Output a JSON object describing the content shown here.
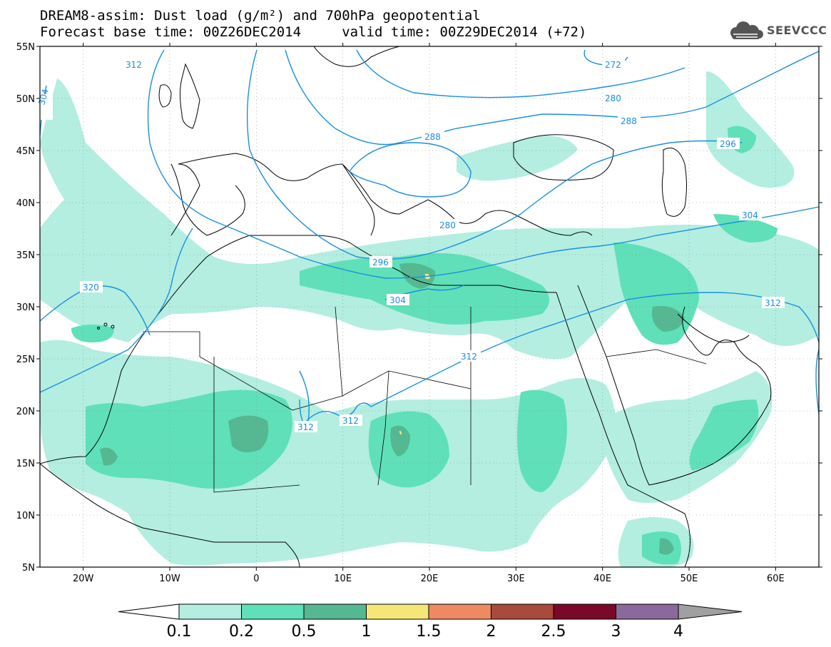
{
  "title": {
    "line1": "DREAM8-assim: Dust load (g/m²) and 700hPa geopotential",
    "line2": "Forecast base time: 00Z26DEC2014     valid time: 00Z29DEC2014 (+72)"
  },
  "logo": {
    "text": "SEEVCCC",
    "icon": "cloud-icon"
  },
  "colors": {
    "c1": "#b3eee0",
    "c2": "#5fe0b8",
    "c3": "#55b892",
    "c4": "#f5e678",
    "c5": "#ee8a62",
    "c6": "#a84a3c",
    "c7": "#7a0828",
    "c8": "#8a6a9a",
    "c9": "#a0a0a0",
    "contour": "#1a8fe0"
  },
  "map": {
    "lon_range": [
      -25,
      65
    ],
    "lat_range": [
      5,
      55
    ],
    "lat_labels": [
      "5N",
      "10N",
      "15N",
      "20N",
      "25N",
      "30N",
      "35N",
      "40N",
      "45N",
      "50N",
      "55N"
    ],
    "lon_labels": [
      "20W",
      "10W",
      "0",
      "10E",
      "20E",
      "30E",
      "40E",
      "50E",
      "60E"
    ],
    "contour_labels": [
      "272",
      "280",
      "288",
      "296",
      "304",
      "312",
      "320",
      "312",
      "304",
      "312",
      "312",
      "312",
      "296",
      "288",
      "280",
      "304"
    ]
  },
  "colorbar": {
    "levels": [
      "0.1",
      "0.2",
      "0.5",
      "1",
      "1.5",
      "2",
      "2.5",
      "3",
      "4"
    ]
  }
}
